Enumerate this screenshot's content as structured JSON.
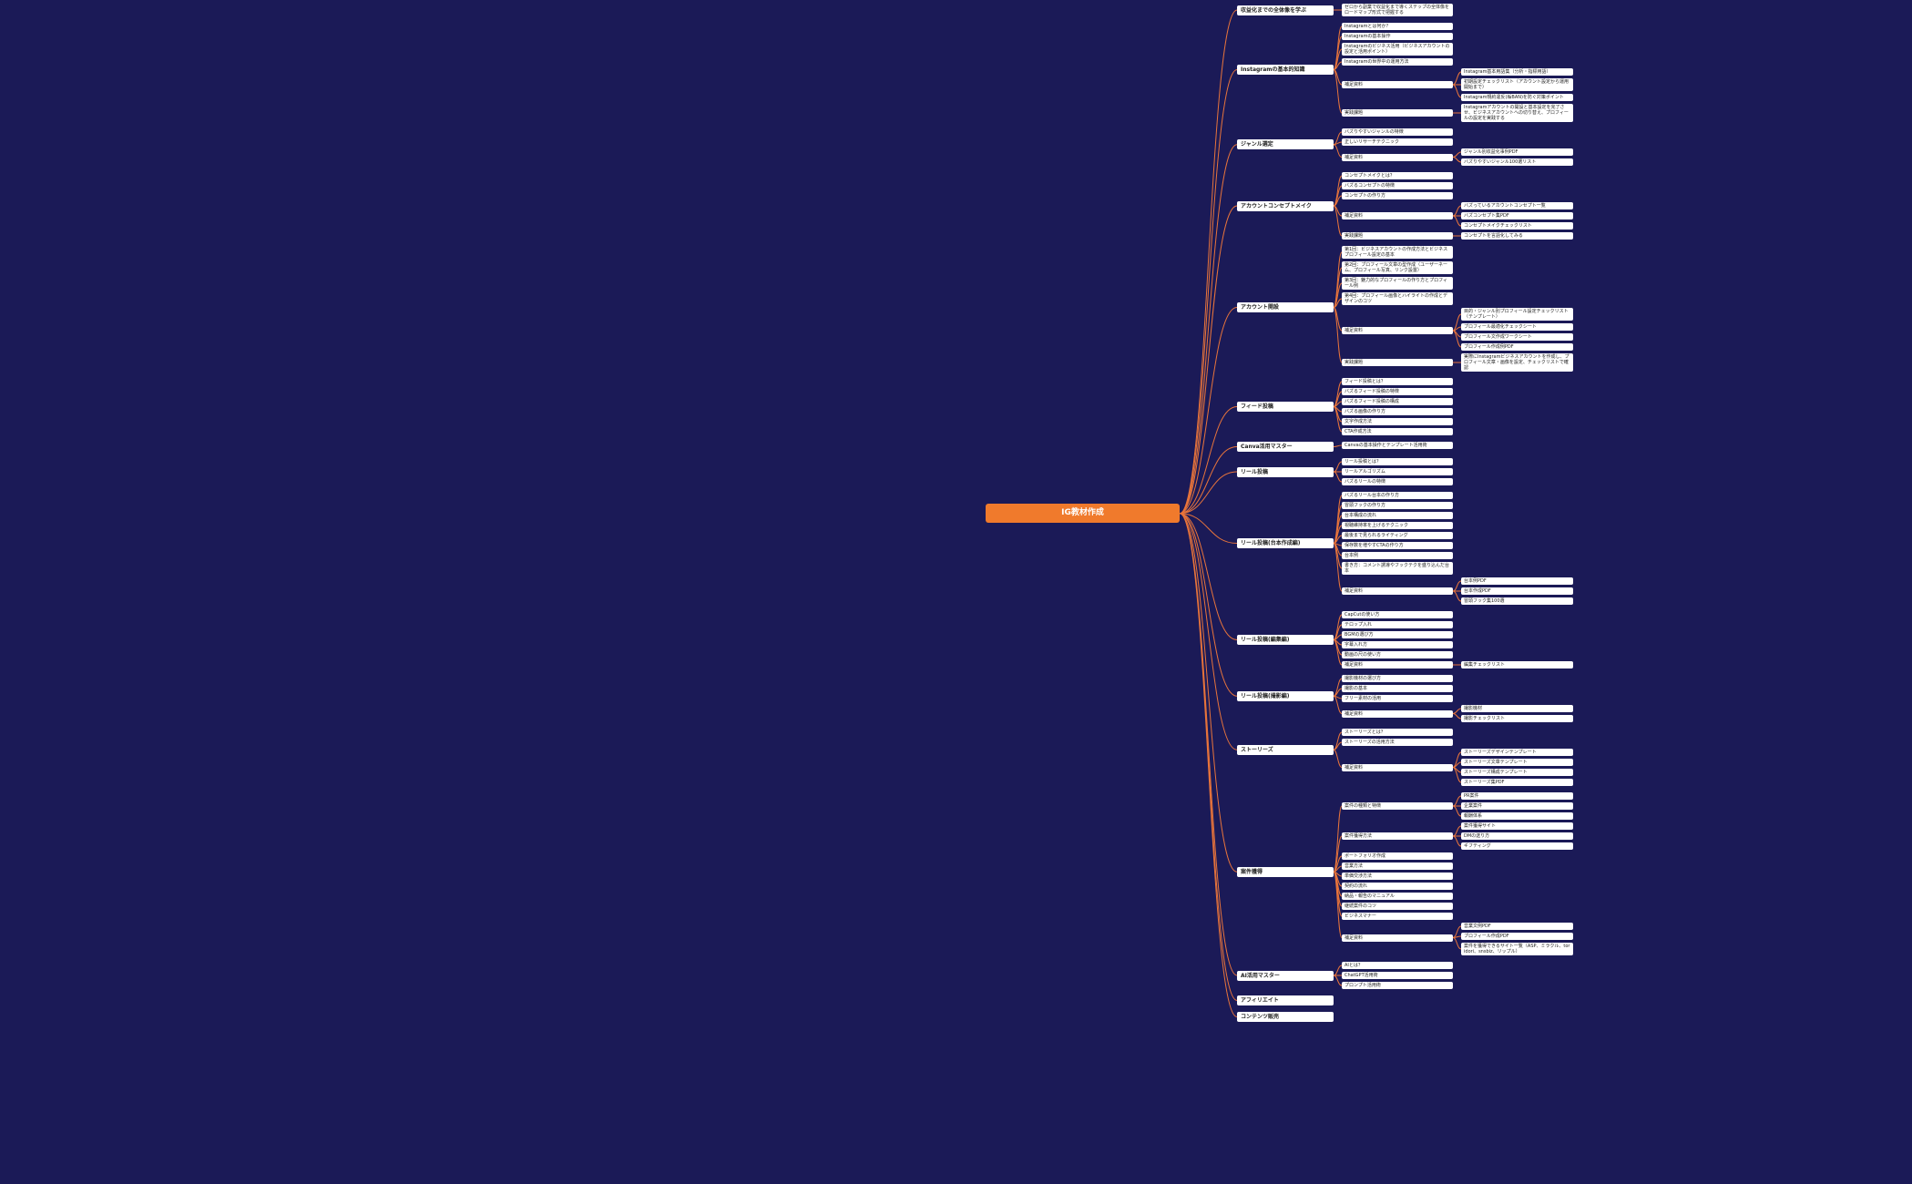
{
  "title": "IG教材作成",
  "nodes": [
    {
      "label": "収益化までの全体像を学ぶ",
      "children": [
        {
          "label": "ゼロから副業で収益化まで導くステップの全体像をロードマップ形式で把握する"
        }
      ]
    },
    {
      "label": "Instagramの基本的知識",
      "children": [
        {
          "label": "Instagramとは何か？"
        },
        {
          "label": "Instagramの基本操作"
        },
        {
          "label": "Instagramのビジネス活用（ビジネスアカウントの設定と活用ポイント）"
        },
        {
          "label": "Instagramの世界中の運用方法"
        },
        {
          "label": "補足資料",
          "children": [
            {
              "label": "Instagram基本用語集（分析・指標用語）"
            },
            {
              "label": "初期設定チェックリスト（アカウント設定から運用開始まで）"
            },
            {
              "label": "Instagram規約違反(垢BAN)を防ぐ対策ポイント"
            }
          ]
        },
        {
          "label": "実践課題",
          "children": [
            {
              "label": "Instagramアカウントの開設と基本設定を完了させ、ビジネスアカウントへの切り替え、プロフィールの設定を実践する"
            }
          ]
        }
      ]
    },
    {
      "label": "ジャンル選定",
      "children": [
        {
          "label": "バズりやすいジャンルの特徴"
        },
        {
          "label": "正しいリサーチテクニック"
        },
        {
          "label": "補足資料",
          "children": [
            {
              "label": "ジャンル別収益化事例PDF"
            },
            {
              "label": "バズりやすいジャンル100選リスト"
            }
          ]
        }
      ]
    },
    {
      "label": "アカウントコンセプトメイク",
      "children": [
        {
          "label": "コンセプトメイクとは？"
        },
        {
          "label": "バズるコンセプトの特徴"
        },
        {
          "label": "コンセプトの作り方"
        },
        {
          "label": "補足資料",
          "children": [
            {
              "label": "バズっているアカウントコンセプト一覧"
            },
            {
              "label": "バズコンセプト集PDF"
            },
            {
              "label": "コンセプトメイクチェックリスト"
            }
          ]
        },
        {
          "label": "実践課題",
          "children": [
            {
              "label": "コンセプトを言語化してみる"
            }
          ]
        }
      ]
    },
    {
      "label": "アカウント開設",
      "children": [
        {
          "label": "第1回：ビジネスアカウントの作成方法とビジネスプロフィール設定の基本"
        },
        {
          "label": "第2回：プロフィール文章の型作成（ユーザーネーム、プロフィール写真、リンク設置）"
        },
        {
          "label": "第3回：魅力的なプロフィールの作り方とプロフィール例"
        },
        {
          "label": "第4回：プロフィール画像とハイライトの作成とデザインのコツ"
        },
        {
          "label": "補足資料",
          "children": [
            {
              "label": "目的・ジャンル別プロフィール設定チェックリスト（テンプレート）"
            },
            {
              "label": "プロフィール最適化チェックシート"
            },
            {
              "label": "プロフィール文作成ワークシート"
            },
            {
              "label": "プロフィール作成例PDF"
            }
          ]
        },
        {
          "label": "実践課題",
          "children": [
            {
              "label": "実際にInstagramビジネスアカウントを作成し、プロフィール文章・画像を設定、チェックリストで確認"
            }
          ]
        }
      ]
    },
    {
      "label": "フィード投稿",
      "children": [
        {
          "label": "フィード投稿とは？"
        },
        {
          "label": "バズるフィード投稿の特徴"
        },
        {
          "label": "バズるフィード投稿の構成"
        },
        {
          "label": "バズる画像の作り方"
        },
        {
          "label": "文字作成方法"
        },
        {
          "label": "CTA作成方法"
        }
      ]
    },
    {
      "label": "Canva活用マスター",
      "children": [
        {
          "label": "Canvaの基本操作とテンプレート活用術"
        }
      ]
    },
    {
      "label": "リール投稿",
      "children": [
        {
          "label": "リール投稿とは？"
        },
        {
          "label": "リールアルゴリズム"
        },
        {
          "label": "バズるリールの特徴"
        }
      ]
    },
    {
      "label": "リール投稿(台本作成編)",
      "children": [
        {
          "label": "バズるリール台本の作り方"
        },
        {
          "label": "冒頭フックの作り方"
        },
        {
          "label": "台本構成の流れ"
        },
        {
          "label": "視聴維持率を上げるテクニック"
        },
        {
          "label": "最後まで見られるライティング"
        },
        {
          "label": "保存数を増やすCTAの作り方"
        },
        {
          "label": "台本例"
        },
        {
          "label": "書き方：コメント誘導やフックテクを盛り込んだ台本"
        },
        {
          "label": "補足資料",
          "children": [
            {
              "label": "台本例PDF"
            },
            {
              "label": "台本作成PDF"
            },
            {
              "label": "冒頭フック集100選"
            }
          ]
        }
      ]
    },
    {
      "label": "リール投稿(編集編)",
      "children": [
        {
          "label": "CapCutの使い方"
        },
        {
          "label": "テロップ入れ"
        },
        {
          "label": "BGMの選び方"
        },
        {
          "label": "字幕入れ方"
        },
        {
          "label": "動画の尺の使い方"
        },
        {
          "label": "補足資料",
          "children": [
            {
              "label": "編集チェックリスト"
            }
          ]
        }
      ]
    },
    {
      "label": "リール投稿(撮影編)",
      "children": [
        {
          "label": "撮影機材の選び方"
        },
        {
          "label": "撮影の基本"
        },
        {
          "label": "フリー素材の活用"
        },
        {
          "label": "補足資料",
          "children": [
            {
              "label": "撮影機材"
            },
            {
              "label": "撮影チェックリスト"
            }
          ]
        }
      ]
    },
    {
      "label": "ストーリーズ",
      "children": [
        {
          "label": "ストーリーズとは？"
        },
        {
          "label": "ストーリーズの活用方法"
        },
        {
          "label": "補足資料",
          "children": [
            {
              "label": "ストーリーズデザインテンプレート"
            },
            {
              "label": "ストーリーズ文章テンプレート"
            },
            {
              "label": "ストーリーズ構成テンプレート"
            },
            {
              "label": "ストーリーズ集PDF"
            }
          ]
        }
      ]
    },
    {
      "label": "案件獲得",
      "children": [
        {
          "label": "案件の種類と特徴",
          "children": [
            {
              "label": "PR案件"
            },
            {
              "label": "企業案件"
            },
            {
              "label": "報酬体系"
            }
          ]
        },
        {
          "label": "案件獲得方法",
          "children": [
            {
              "label": "案件獲得サイト"
            },
            {
              "label": "DMの送り方"
            },
            {
              "label": "ギフティング"
            }
          ]
        },
        {
          "label": "ポートフォリオ作成"
        },
        {
          "label": "営業方法"
        },
        {
          "label": "単価交渉方法"
        },
        {
          "label": "契約の流れ"
        },
        {
          "label": "納品・報告のマニュアル"
        },
        {
          "label": "継続案件のコツ"
        },
        {
          "label": "ビジネスマナー"
        },
        {
          "label": "補足資料",
          "children": [
            {
              "label": "営業文例PDF"
            },
            {
              "label": "プロフィール作成PDF"
            },
            {
              "label": "案件を獲得できるサイト一覧（ASP、ミラクル、toridori、snsbiz、リップル）"
            }
          ]
        }
      ]
    },
    {
      "label": "AI活用マスター",
      "children": [
        {
          "label": "AIとは？"
        },
        {
          "label": "ChatGPT活用術"
        },
        {
          "label": "プロンプト活用術"
        }
      ]
    },
    {
      "label": "アフィリエイト"
    },
    {
      "label": "コンテンツ販売"
    }
  ]
}
